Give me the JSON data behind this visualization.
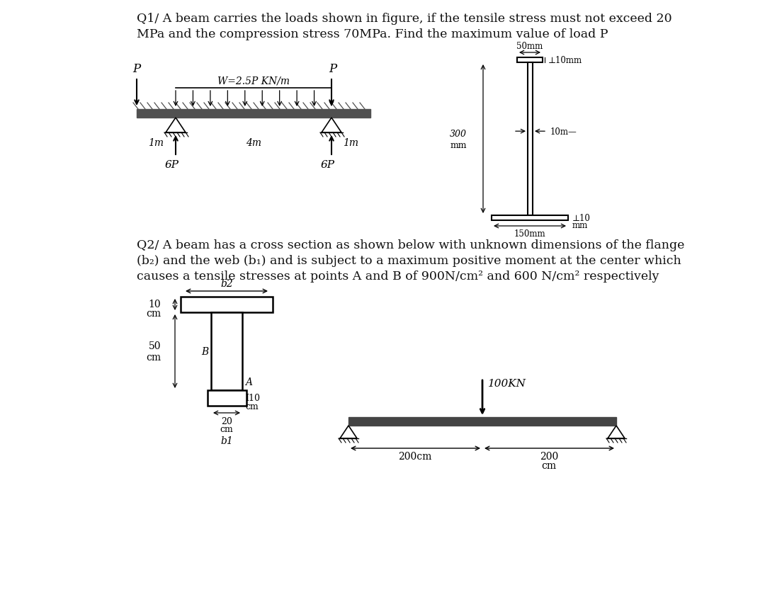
{
  "bg_color": "#ffffff",
  "text_color": "#1a1a1a",
  "q1_title_line1": "Q1/ A beam carries the loads shown in figure, if the tensile stress must not exceed 20",
  "q1_title_line2": "MPa and the compression stress 70MPa. Find the maximum value of load P",
  "q2_line1": "Q2/ A beam has a cross section as shown below with unknown dimensions of the flange",
  "q2_line2": "(b₂) and the web (b₁) and is subject to a maximum positive moment at the center which",
  "q2_line3": "causes a tensile stresses at points A and B of 900N/cm² and 600 N/cm² respectively"
}
